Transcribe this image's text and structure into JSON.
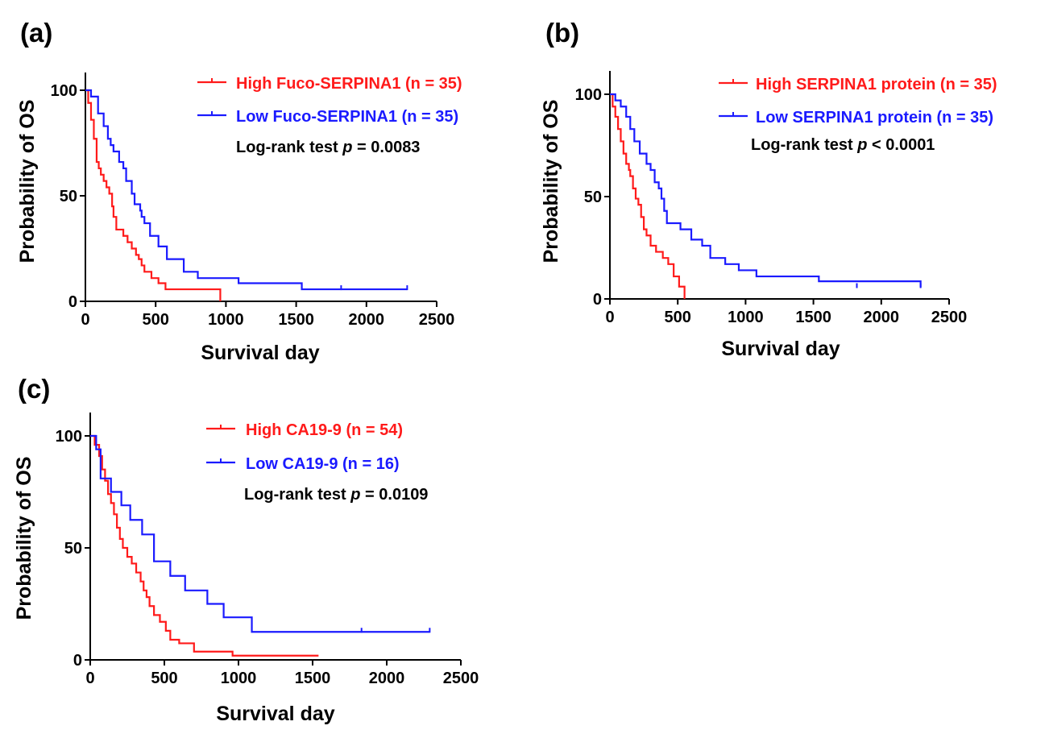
{
  "chart_data": [
    {
      "panel_label": "(a)",
      "type": "line",
      "step": true,
      "xlabel": "Survival day",
      "ylabel": "Probability of OS",
      "xlim": [
        0,
        2500
      ],
      "ylim": [
        0,
        110
      ],
      "xticks": [
        0,
        500,
        1000,
        1500,
        2000,
        2500
      ],
      "yticks": [
        0,
        50,
        100
      ],
      "legend_position": "top-right",
      "annotation": {
        "prefix": "Log-rank test ",
        "p": "p",
        "suffix": " = 0.0083"
      },
      "series": [
        {
          "name": "High Fuco-SERPINA1 (n = 35)",
          "color": "#ff1a1a",
          "x": [
            0,
            20,
            40,
            60,
            80,
            95,
            110,
            130,
            150,
            170,
            190,
            200,
            220,
            270,
            300,
            330,
            360,
            380,
            400,
            420,
            470,
            520,
            570,
            610,
            680,
            820,
            960
          ],
          "y": [
            100,
            94,
            86,
            77,
            66,
            63,
            60,
            57,
            54,
            51,
            45,
            40,
            34,
            31,
            28,
            25,
            22,
            20,
            17,
            14,
            11,
            8.6,
            5.7,
            5.7,
            5.7,
            5.7,
            0
          ]
        },
        {
          "name": "Low Fuco-SERPINA1 (n = 35)",
          "color": "#1a1aff",
          "x": [
            0,
            40,
            90,
            130,
            160,
            180,
            200,
            240,
            270,
            290,
            330,
            350,
            390,
            400,
            420,
            460,
            520,
            580,
            700,
            800,
            1090,
            1540,
            2290
          ],
          "y": [
            100,
            97,
            89,
            83,
            77,
            74,
            71,
            66,
            63,
            57,
            51,
            46,
            43,
            40,
            37,
            31,
            26,
            20,
            14,
            11,
            8.6,
            5.7,
            5.7
          ],
          "censored_x": [
            1820,
            2290
          ],
          "censored_y": [
            5.7,
            5.7
          ]
        }
      ]
    },
    {
      "panel_label": "(b)",
      "type": "line",
      "step": true,
      "xlabel": "Survival day",
      "ylabel": "Probability of OS",
      "xlim": [
        0,
        2500
      ],
      "ylim": [
        0,
        110
      ],
      "xticks": [
        0,
        500,
        1000,
        1500,
        2000,
        2500
      ],
      "yticks": [
        0,
        50,
        100
      ],
      "legend_position": "top-right",
      "annotation": {
        "prefix": "Log-rank test ",
        "p": "p",
        "suffix": " < 0.0001"
      },
      "series": [
        {
          "name": "High SERPINA1 protein (n = 35)",
          "color": "#ff1a1a",
          "x": [
            0,
            20,
            40,
            60,
            80,
            100,
            120,
            140,
            150,
            170,
            190,
            210,
            230,
            250,
            270,
            300,
            340,
            390,
            430,
            470,
            510,
            550
          ],
          "y": [
            100,
            94,
            89,
            83,
            77,
            71,
            66,
            63,
            60,
            54,
            49,
            46,
            40,
            34,
            31,
            26,
            23,
            20,
            17,
            11,
            6,
            0
          ]
        },
        {
          "name": "Low SERPINA1 protein (n = 35)",
          "color": "#1a1aff",
          "x": [
            0,
            40,
            80,
            120,
            150,
            180,
            220,
            270,
            300,
            330,
            360,
            380,
            400,
            420,
            450,
            520,
            600,
            680,
            740,
            850,
            950,
            1080,
            1540,
            2290
          ],
          "y": [
            100,
            97,
            94,
            89,
            83,
            77,
            71,
            66,
            63,
            57,
            54,
            49,
            43,
            37,
            37,
            34,
            29,
            26,
            20,
            17,
            14,
            11,
            8.6,
            5.7
          ],
          "censored_x": [
            1820,
            2290
          ],
          "censored_y": [
            5.7,
            5.7
          ]
        }
      ]
    },
    {
      "panel_label": "(c)",
      "type": "line",
      "step": true,
      "xlabel": "Survival day",
      "ylabel": "Probability of OS",
      "xlim": [
        0,
        2500
      ],
      "ylim": [
        0,
        110
      ],
      "xticks": [
        0,
        500,
        1000,
        1500,
        2000,
        2500
      ],
      "yticks": [
        0,
        50,
        100
      ],
      "legend_position": "top-right",
      "annotation": {
        "prefix": "Log-rank test ",
        "p": "p",
        "suffix": " = 0.0109"
      },
      "series": [
        {
          "name": "High CA19-9 (n = 54)",
          "color": "#ff1a1a",
          "x": [
            0,
            30,
            60,
            80,
            100,
            120,
            140,
            160,
            180,
            200,
            220,
            250,
            280,
            310,
            340,
            360,
            380,
            400,
            430,
            470,
            510,
            540,
            600,
            700,
            960,
            1540
          ],
          "y": [
            100,
            96,
            91,
            85,
            80,
            74,
            70,
            65,
            59,
            54,
            50,
            46,
            43,
            39,
            35,
            31,
            28,
            24,
            20,
            17,
            13,
            9,
            7.4,
            3.7,
            1.9,
            1.9
          ]
        },
        {
          "name": "Low CA19-9 (n = 16)",
          "color": "#1a1aff",
          "x": [
            0,
            40,
            70,
            140,
            210,
            270,
            350,
            430,
            540,
            640,
            790,
            900,
            1090,
            2290
          ],
          "y": [
            100,
            94,
            81,
            75,
            69,
            62.5,
            56,
            44,
            37.5,
            31,
            25,
            19,
            12.5,
            12.5
          ],
          "censored_x": [
            1830,
            2290
          ],
          "censored_y": [
            12.5,
            12.5
          ]
        }
      ]
    }
  ]
}
